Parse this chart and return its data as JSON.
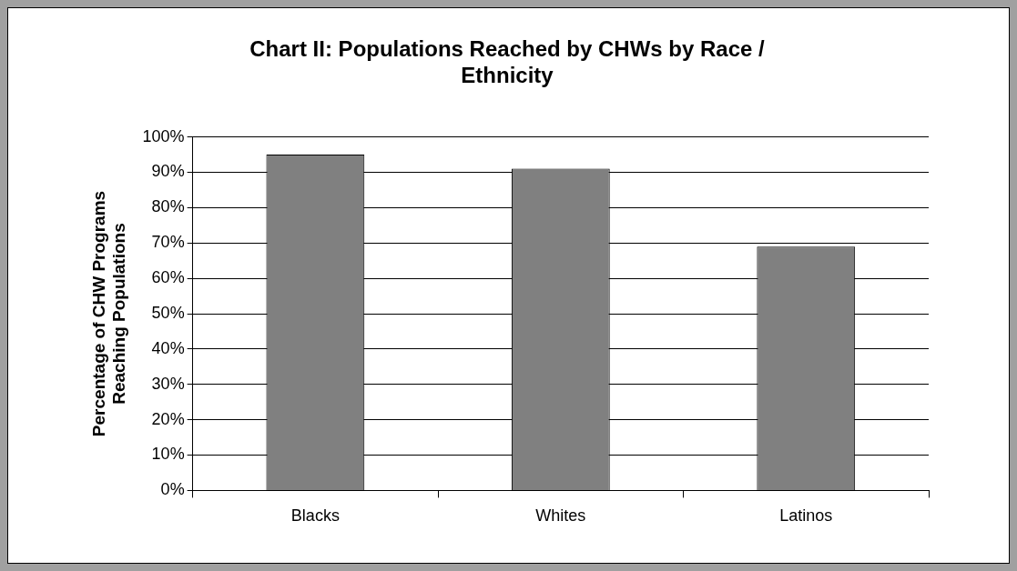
{
  "chart_data": {
    "type": "bar",
    "title": "Chart II: Populations Reached by CHWs by Race / Ethnicity",
    "ylabel": "Percentage of CHW Programs Reaching Populations",
    "categories": [
      "Blacks",
      "Whites",
      "Latinos"
    ],
    "values": [
      95,
      91,
      69
    ],
    "color": "#808080",
    "ylim": [
      0,
      100
    ],
    "yticks": [
      {
        "value": 0,
        "label": "0%"
      },
      {
        "value": 10,
        "label": "10%"
      },
      {
        "value": 20,
        "label": "20%"
      },
      {
        "value": 30,
        "label": "30%"
      },
      {
        "value": 40,
        "label": "40%"
      },
      {
        "value": 50,
        "label": "50%"
      },
      {
        "value": 60,
        "label": "60%"
      },
      {
        "value": 70,
        "label": "70%"
      },
      {
        "value": 80,
        "label": "80%"
      },
      {
        "value": 90,
        "label": "90%"
      },
      {
        "value": 100,
        "label": "100%"
      }
    ],
    "grid": "y",
    "legend": false
  }
}
